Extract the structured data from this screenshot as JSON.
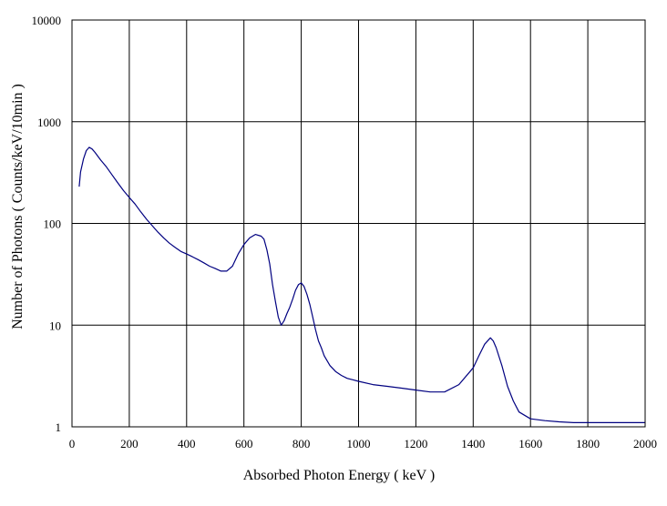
{
  "chart_data": {
    "type": "line",
    "xlabel": "Absorbed Photon Energy  ( keV )",
    "ylabel": "Number  of Photons ( Counts/keV/10min  )",
    "xlim": [
      0,
      2000
    ],
    "ylim": [
      1,
      10000
    ],
    "y_scale": "log",
    "grid": true,
    "legend": "none",
    "x_ticks": [
      "0",
      "200",
      "400",
      "600",
      "800",
      "1000",
      "1200",
      "1400",
      "1600",
      "1800",
      "2000"
    ],
    "y_ticks": [
      "1",
      "10",
      "100",
      "1000",
      "10000"
    ],
    "series": [
      {
        "color": "#000080",
        "x": [
          25,
          30,
          40,
          50,
          60,
          70,
          80,
          100,
          120,
          140,
          160,
          180,
          200,
          220,
          240,
          260,
          280,
          300,
          320,
          340,
          360,
          380,
          400,
          420,
          440,
          460,
          480,
          500,
          520,
          540,
          560,
          580,
          600,
          620,
          640,
          660,
          670,
          680,
          690,
          700,
          710,
          720,
          730,
          740,
          750,
          760,
          770,
          780,
          790,
          800,
          810,
          820,
          830,
          840,
          850,
          860,
          870,
          880,
          900,
          920,
          940,
          960,
          980,
          1000,
          1050,
          1100,
          1150,
          1200,
          1250,
          1300,
          1350,
          1400,
          1420,
          1440,
          1460,
          1470,
          1480,
          1500,
          1520,
          1540,
          1560,
          1600,
          1650,
          1700,
          1750,
          1800,
          1850,
          1900,
          1950,
          2000
        ],
        "y": [
          230,
          320,
          430,
          520,
          560,
          540,
          500,
          420,
          360,
          300,
          250,
          210,
          180,
          155,
          130,
          110,
          95,
          82,
          72,
          64,
          58,
          53,
          50,
          47,
          44,
          41,
          38,
          36,
          34,
          34,
          38,
          50,
          62,
          72,
          78,
          75,
          70,
          55,
          40,
          25,
          17,
          12,
          10,
          11,
          13,
          15,
          18,
          22,
          25,
          26,
          24,
          20,
          16,
          12,
          9,
          7,
          6,
          5,
          4,
          3.5,
          3.2,
          3,
          2.9,
          2.8,
          2.6,
          2.5,
          2.4,
          2.3,
          2.2,
          2.2,
          2.6,
          3.8,
          5,
          6.5,
          7.5,
          7,
          6,
          4,
          2.5,
          1.8,
          1.4,
          1.2,
          1.15,
          1.12,
          1.1,
          1.1,
          1.1,
          1.1,
          1.1,
          1.1
        ]
      }
    ]
  }
}
